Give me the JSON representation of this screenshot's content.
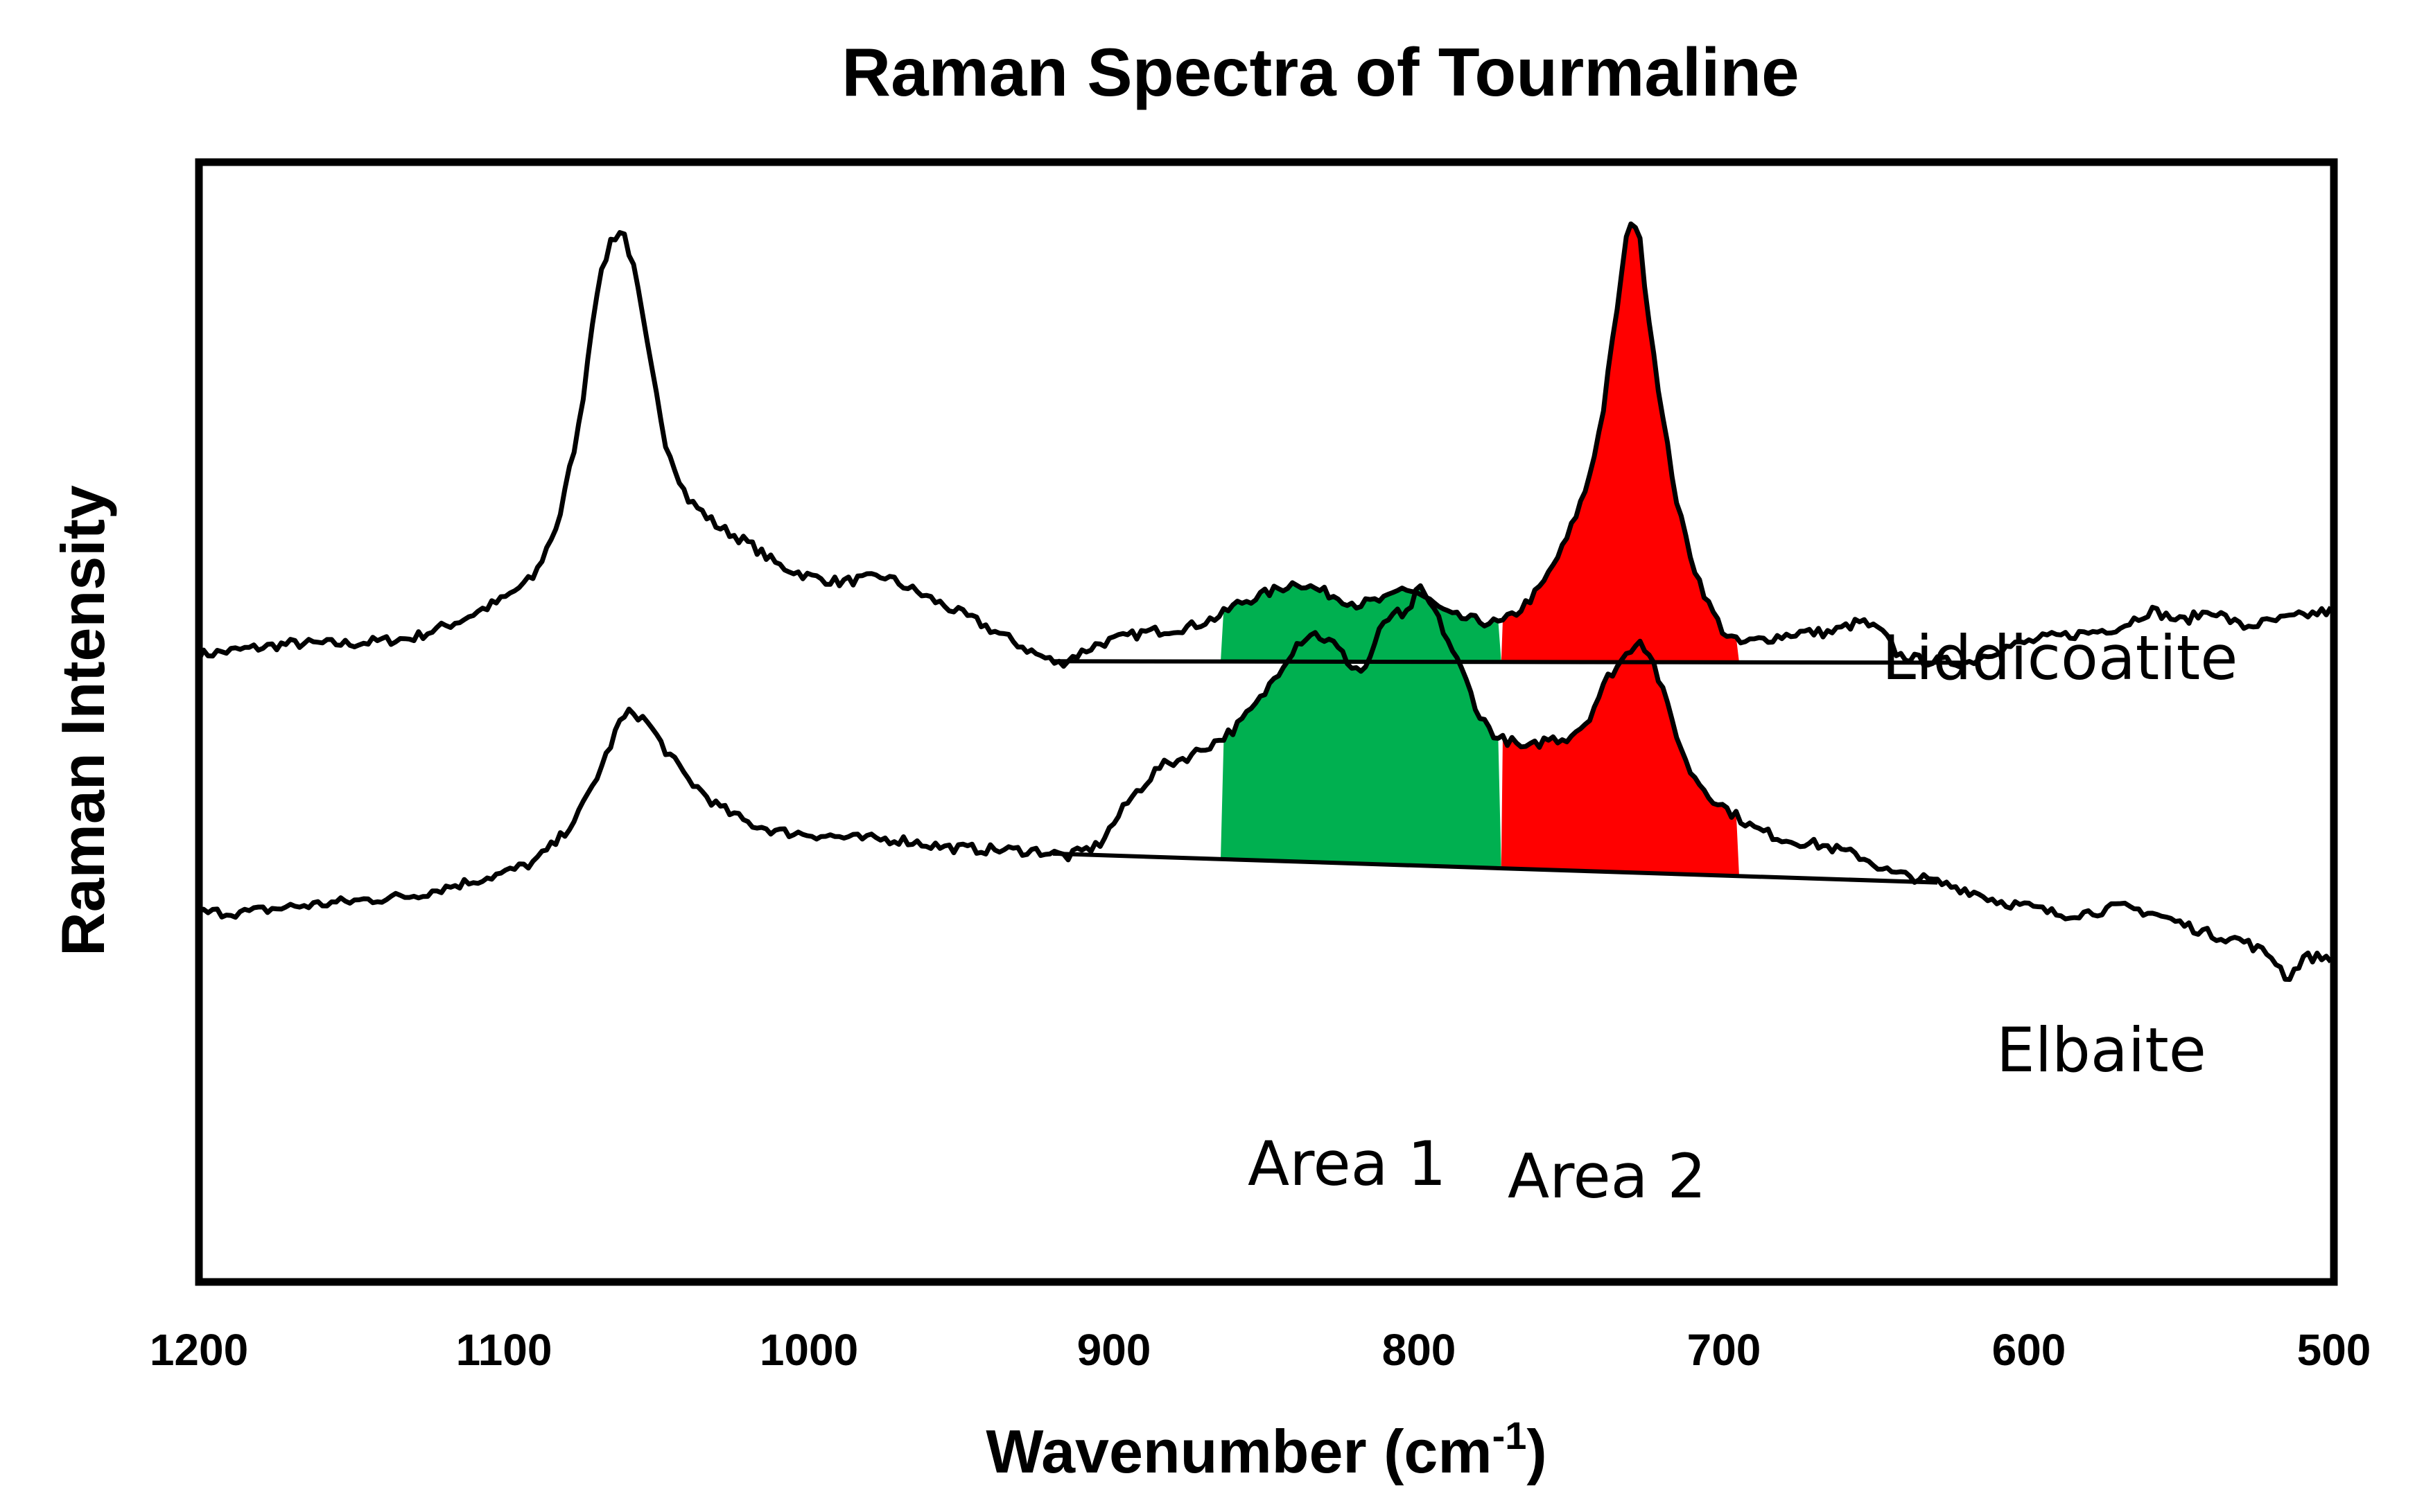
{
  "chart_data": {
    "type": "line",
    "title": "Raman Spectra of Tourmaline",
    "xlabel": "Wavenumber (cm",
    "xlabel_superscript": "-1",
    "xlabel_suffix": ")",
    "ylabel": "Raman Intensity",
    "xlim": [
      1200,
      500
    ],
    "ylim": [
      0,
      100
    ],
    "x_reversed": true,
    "x_ticks": [
      1200,
      1100,
      1000,
      900,
      800,
      700,
      600,
      500
    ],
    "y_ticks_shown": false,
    "grid": false,
    "series": [
      {
        "name": "Liddicoatite",
        "points": [
          [
            1200,
            56
          ],
          [
            1185,
            56.5
          ],
          [
            1170,
            57
          ],
          [
            1150,
            57
          ],
          [
            1130,
            57.5
          ],
          [
            1115,
            59
          ],
          [
            1100,
            61
          ],
          [
            1090,
            63
          ],
          [
            1082,
            68
          ],
          [
            1075,
            77
          ],
          [
            1070,
            88
          ],
          [
            1065,
            93
          ],
          [
            1061,
            94
          ],
          [
            1057,
            90
          ],
          [
            1052,
            82
          ],
          [
            1047,
            75
          ],
          [
            1040,
            70
          ],
          [
            1030,
            67.5
          ],
          [
            1020,
            66
          ],
          [
            1010,
            64
          ],
          [
            1000,
            63
          ],
          [
            990,
            62.5
          ],
          [
            975,
            63
          ],
          [
            960,
            61
          ],
          [
            945,
            59
          ],
          [
            935,
            57.5
          ],
          [
            925,
            56
          ],
          [
            918,
            55.2
          ],
          [
            905,
            57
          ],
          [
            890,
            58
          ],
          [
            875,
            58.5
          ],
          [
            865,
            59.5
          ],
          [
            860,
            60.5
          ],
          [
            850,
            61.5
          ],
          [
            840,
            62.5
          ],
          [
            830,
            61.5
          ],
          [
            820,
            60.5
          ],
          [
            810,
            61
          ],
          [
            805,
            62
          ],
          [
            800,
            61.5
          ],
          [
            790,
            59.5
          ],
          [
            780,
            59
          ],
          [
            773,
            58.8
          ],
          [
            767,
            60
          ],
          [
            760,
            62
          ],
          [
            752,
            66
          ],
          [
            745,
            71
          ],
          [
            740,
            77
          ],
          [
            735,
            87
          ],
          [
            731,
            95
          ],
          [
            728,
            94
          ],
          [
            725,
            87
          ],
          [
            720,
            77
          ],
          [
            715,
            69
          ],
          [
            710,
            64
          ],
          [
            705,
            60.5
          ],
          [
            700,
            58
          ],
          [
            695,
            57
          ],
          [
            685,
            57.5
          ],
          [
            675,
            58
          ],
          [
            665,
            58
          ],
          [
            655,
            59
          ],
          [
            648,
            58
          ],
          [
            643,
            56
          ],
          [
            635,
            55.5
          ],
          [
            620,
            55.3
          ],
          [
            610,
            56.5
          ],
          [
            595,
            57.5
          ],
          [
            580,
            58
          ],
          [
            570,
            58.5
          ],
          [
            560,
            60
          ],
          [
            550,
            59
          ],
          [
            540,
            60
          ],
          [
            530,
            58.5
          ],
          [
            520,
            59
          ],
          [
            510,
            59.5
          ],
          [
            500,
            60
          ]
        ],
        "baseline_x": [
          920,
          620
        ]
      },
      {
        "name": "Elbaite",
        "points": [
          [
            1200,
            33
          ],
          [
            1185,
            33
          ],
          [
            1170,
            33.5
          ],
          [
            1150,
            34
          ],
          [
            1130,
            34.5
          ],
          [
            1115,
            35.5
          ],
          [
            1100,
            36.5
          ],
          [
            1090,
            37.5
          ],
          [
            1082,
            39.5
          ],
          [
            1075,
            42
          ],
          [
            1068,
            46
          ],
          [
            1062,
            50
          ],
          [
            1058,
            51
          ],
          [
            1053,
            50
          ],
          [
            1047,
            47.5
          ],
          [
            1040,
            45
          ],
          [
            1030,
            42.5
          ],
          [
            1020,
            41
          ],
          [
            1010,
            40.2
          ],
          [
            1000,
            40
          ],
          [
            985,
            39.6
          ],
          [
            970,
            39.5
          ],
          [
            955,
            38.8
          ],
          [
            940,
            38.6
          ],
          [
            925,
            38.5
          ],
          [
            915,
            38
          ],
          [
            905,
            39
          ],
          [
            895,
            43
          ],
          [
            885,
            46
          ],
          [
            875,
            47
          ],
          [
            865,
            48.5
          ],
          [
            860,
            49.5
          ],
          [
            852,
            52
          ],
          [
            845,
            55
          ],
          [
            840,
            57
          ],
          [
            835,
            58
          ],
          [
            828,
            57
          ],
          [
            822,
            55
          ],
          [
            818,
            54.5
          ],
          [
            813,
            58
          ],
          [
            808,
            60
          ],
          [
            805,
            59
          ],
          [
            800,
            62
          ],
          [
            795,
            60
          ],
          [
            790,
            57
          ],
          [
            785,
            54
          ],
          [
            780,
            50.5
          ],
          [
            774,
            48.5
          ],
          [
            770,
            48.3
          ],
          [
            765,
            47.5
          ],
          [
            758,
            48.5
          ],
          [
            752,
            48.5
          ],
          [
            745,
            50
          ],
          [
            738,
            54
          ],
          [
            732,
            56
          ],
          [
            728,
            57.5
          ],
          [
            724,
            56
          ],
          [
            718,
            51
          ],
          [
            712,
            46
          ],
          [
            705,
            43.5
          ],
          [
            698,
            42
          ],
          [
            690,
            40.5
          ],
          [
            680,
            39.5
          ],
          [
            668,
            39
          ],
          [
            655,
            38
          ],
          [
            645,
            36.5
          ],
          [
            635,
            36
          ],
          [
            620,
            35
          ],
          [
            610,
            34
          ],
          [
            600,
            33.5
          ],
          [
            590,
            32.8
          ],
          [
            580,
            33
          ],
          [
            570,
            33.5
          ],
          [
            560,
            33
          ],
          [
            550,
            32
          ],
          [
            540,
            31
          ],
          [
            530,
            30.5
          ],
          [
            520,
            29
          ],
          [
            515,
            27
          ],
          [
            510,
            29
          ],
          [
            500,
            29
          ]
        ],
        "baseline_x": [
          920,
          630
        ]
      }
    ],
    "areas": [
      {
        "name": "Area 1",
        "color": "#00b050",
        "x_from": 865,
        "x_to": 773
      },
      {
        "name": "Area 2",
        "color": "#ff0000",
        "x_from": 773,
        "x_to": 695
      }
    ]
  }
}
